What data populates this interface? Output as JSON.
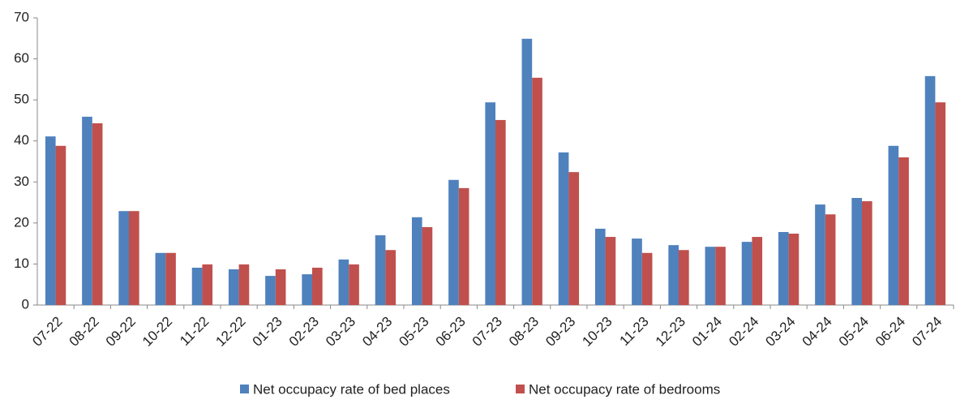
{
  "chart_data": {
    "type": "bar",
    "categories": [
      "07-22",
      "08-22",
      "09-22",
      "10-22",
      "11-22",
      "12-22",
      "01-23",
      "02-23",
      "03-23",
      "04-23",
      "05-23",
      "06-23",
      "07-23",
      "08-23",
      "09-23",
      "10-23",
      "11-23",
      "12-23",
      "01-24",
      "02-24",
      "03-24",
      "04-24",
      "05-24",
      "06-24",
      "07-24"
    ],
    "series": [
      {
        "name": "Net occupacy rate of bed places",
        "color": "#4f81bd",
        "values": [
          41.1,
          45.9,
          22.9,
          12.7,
          9.1,
          8.7,
          7.1,
          7.5,
          11.1,
          17,
          21.4,
          30.5,
          49.4,
          64.9,
          37.2,
          18.6,
          16.2,
          14.6,
          14.2,
          15.4,
          17.8,
          24.5,
          26.1,
          38.8,
          55.8
        ]
      },
      {
        "name": "Net occupacy rate of bedrooms",
        "color": "#c0504d",
        "values": [
          38.8,
          44.3,
          22.9,
          12.7,
          9.9,
          9.9,
          8.7,
          9.1,
          9.9,
          13.4,
          19,
          28.5,
          45.1,
          55.4,
          32.4,
          16.6,
          12.7,
          13.4,
          14.2,
          16.6,
          17.4,
          22.1,
          25.3,
          36,
          49.4
        ]
      }
    ],
    "ylim": [
      0,
      70
    ],
    "yticks": [
      0,
      10,
      20,
      30,
      40,
      50,
      60,
      70
    ],
    "grid": false,
    "legend": "bottom"
  }
}
